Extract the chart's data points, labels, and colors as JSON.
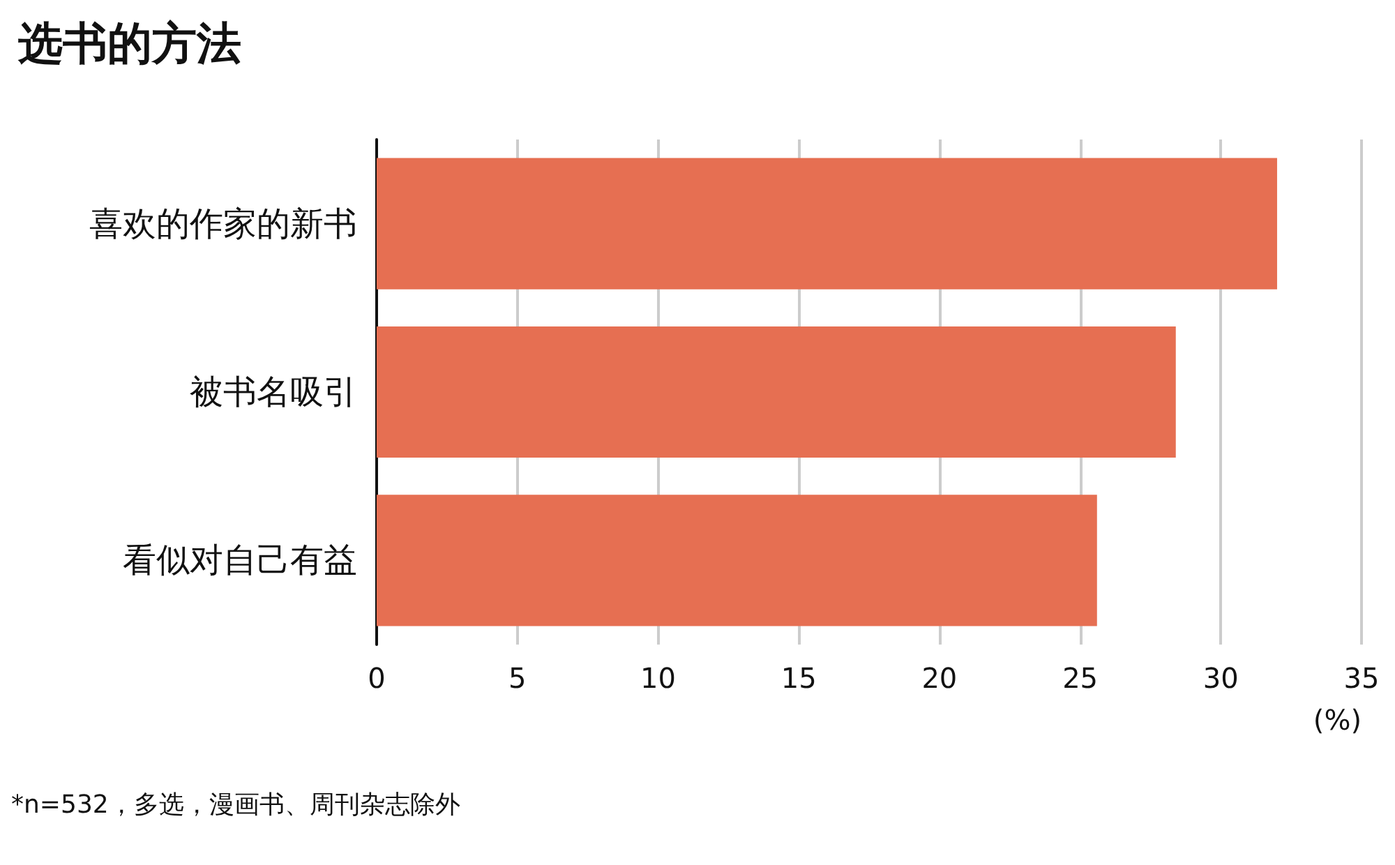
{
  "chart_data": {
    "type": "bar",
    "orientation": "horizontal",
    "title": "选书的方法",
    "xlabel": "(%)",
    "categories": [
      "喜欢的作家的新书",
      "被书名吸引",
      "看似对自己有益"
    ],
    "values": [
      32.0,
      28.4,
      25.6
    ],
    "color": "#e66f52",
    "xlim": [
      0,
      35
    ],
    "xticks": [
      0,
      5,
      10,
      15,
      20,
      25,
      30,
      35
    ],
    "grid": "x",
    "annotations": [
      "*n=532，多选，漫画书、周刊杂志除外"
    ]
  }
}
